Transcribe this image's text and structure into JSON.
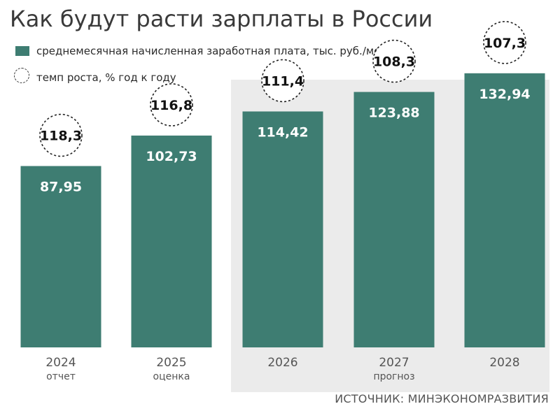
{
  "chart_data": {
    "type": "bar",
    "title": "Как будут расти зарплаты в России",
    "categories": [
      "2024",
      "2025",
      "2026",
      "2027",
      "2028"
    ],
    "category_notes": [
      "отчет",
      "оценка",
      "",
      "прогноз",
      ""
    ],
    "series": [
      {
        "name": "среднемесячная начисленная заработная плата, тыс. руб./мес.",
        "values": [
          87.95,
          102.73,
          114.42,
          123.88,
          132.94
        ],
        "labels": [
          "87,95",
          "102,73",
          "114,42",
          "123,88",
          "132,94"
        ],
        "color": "#3e7d72"
      },
      {
        "name": "темп роста, % год к году",
        "values": [
          118.3,
          116.8,
          111.4,
          108.3,
          107.3
        ],
        "labels": [
          "118,3",
          "116,8",
          "111,4",
          "108,3",
          "107,3"
        ],
        "marker": "dashed-circle"
      }
    ],
    "ylim": [
      0,
      140
    ],
    "xlabel": "",
    "ylabel": "",
    "forecast_shading": [
      "2026",
      "2027",
      "2028"
    ],
    "legend_position": "top-left",
    "grid": false,
    "source": "ИСТОЧНИК: МИНЭКОНОМРАЗВИТИЯ"
  },
  "colors": {
    "bar": "#3e7d72",
    "forecast_panel": "#ebebeb"
  }
}
